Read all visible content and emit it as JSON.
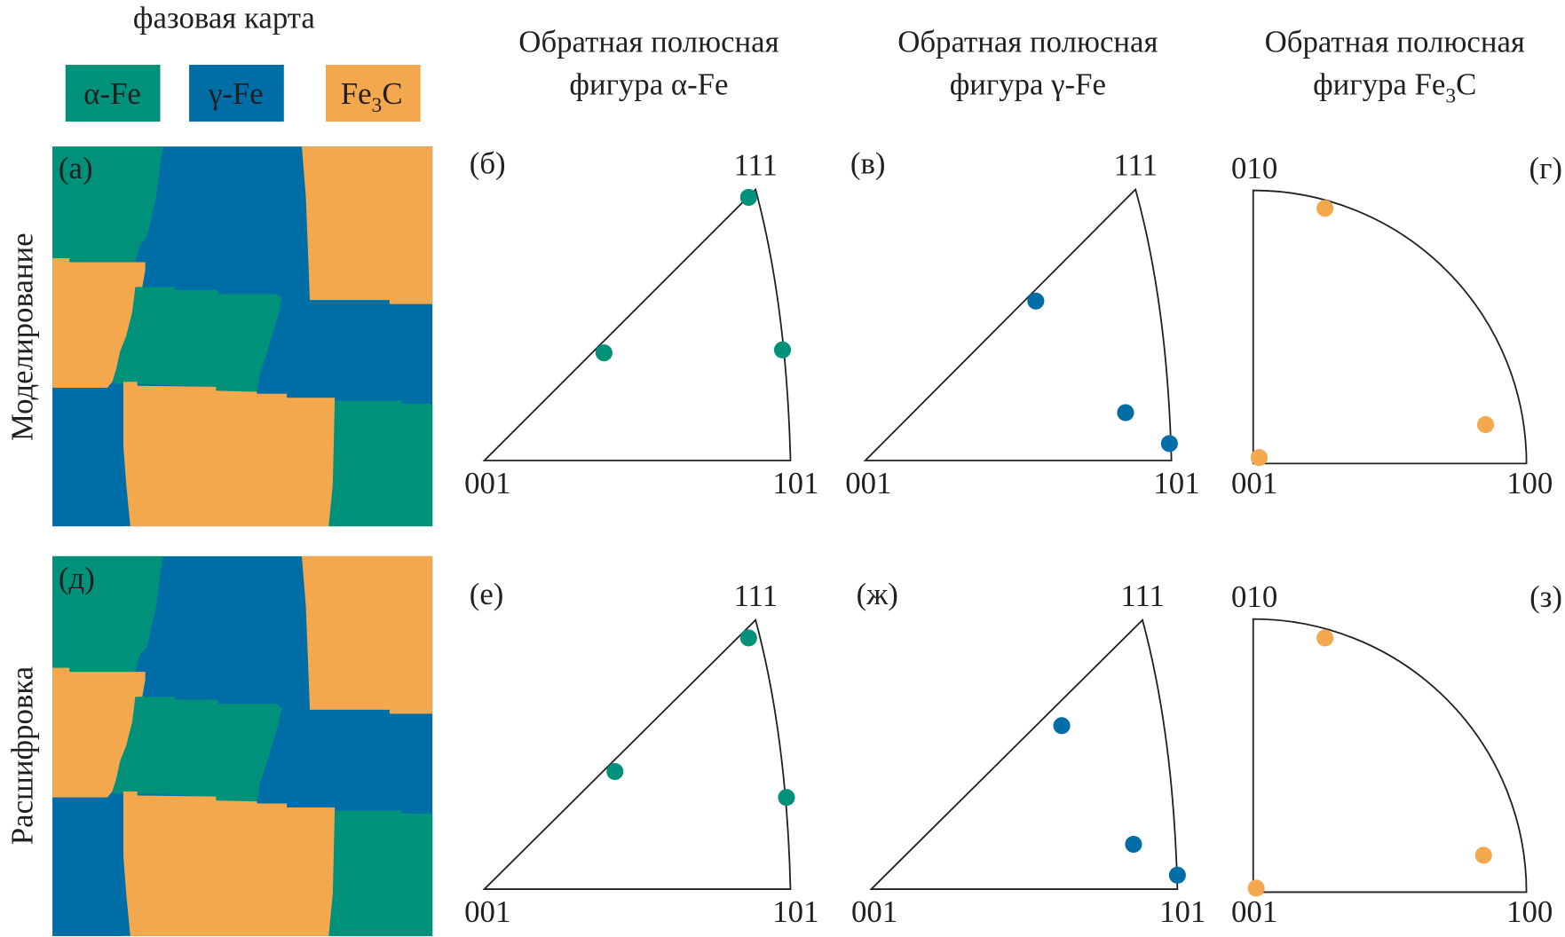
{
  "colors": {
    "alpha_fe": "#00917a",
    "gamma_fe": "#006ea6",
    "fe3c": "#f4a84e",
    "line": "#231f20"
  },
  "phase_map": {
    "title": "фазовая карта",
    "legend": [
      {
        "label": "α-Fe",
        "color": "#00917a"
      },
      {
        "label": "γ-Fe",
        "color": "#006ea6"
      },
      {
        "label": "Fe",
        "sub": "3",
        "tail": "C",
        "color": "#f4a84e"
      }
    ]
  },
  "columns": [
    {
      "line1": "Обратная полюсная",
      "line2": "фигура α-Fe"
    },
    {
      "line1": "Обратная полюсная",
      "line2": "фигура γ-Fe"
    },
    {
      "line1": "Обратная полюсная",
      "line2_pre": "фигура Fe",
      "line2_sub": "3",
      "line2_post": "C"
    }
  ],
  "rows": [
    {
      "label": "Моделирование",
      "panels": [
        "(а)",
        "(б)",
        "(в)",
        "(г)"
      ]
    },
    {
      "label": "Расшифровка",
      "panels": [
        "(д)",
        "(е)",
        "(ж)",
        "(з)"
      ]
    }
  ],
  "poles": {
    "cubic": {
      "top": "111",
      "left": "001",
      "right": "101"
    },
    "ortho": {
      "top": "010",
      "left": "001",
      "right": "100"
    }
  }
}
